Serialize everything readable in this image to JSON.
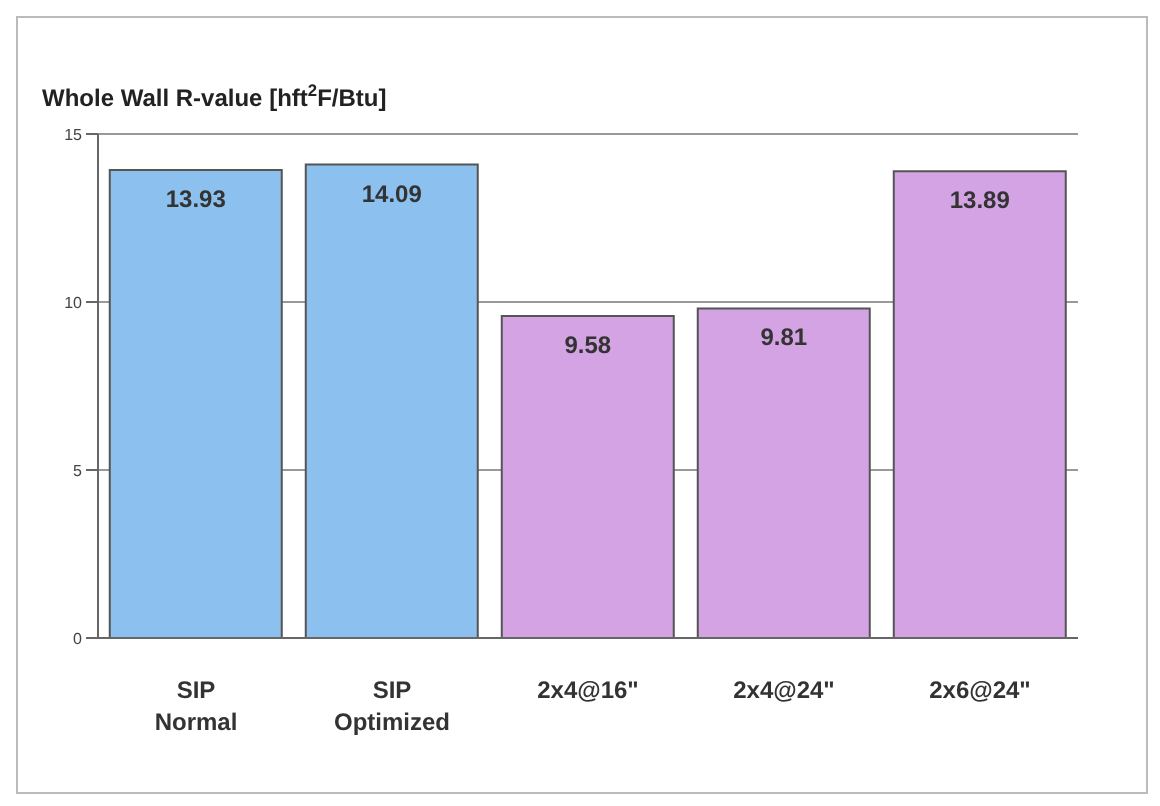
{
  "chart_data": {
    "type": "bar",
    "title": "Whole Wall R-value [hft$^{2}$F/Btu]",
    "categories": [
      "SIP\nNormal",
      "SIP\nOptimized",
      "2x4@16\"",
      "2x4@24\"",
      "2x6@24\""
    ],
    "values": [
      13.93,
      14.09,
      9.58,
      9.81,
      13.89
    ],
    "colors": [
      "#8cc0ee",
      "#8cc0ee",
      "#d3a3e3",
      "#d3a3e3",
      "#d3a3e3"
    ],
    "ylim": [
      0,
      15
    ],
    "yticks": [
      0,
      5,
      10,
      15
    ],
    "grid": "y",
    "data_labels": true
  }
}
